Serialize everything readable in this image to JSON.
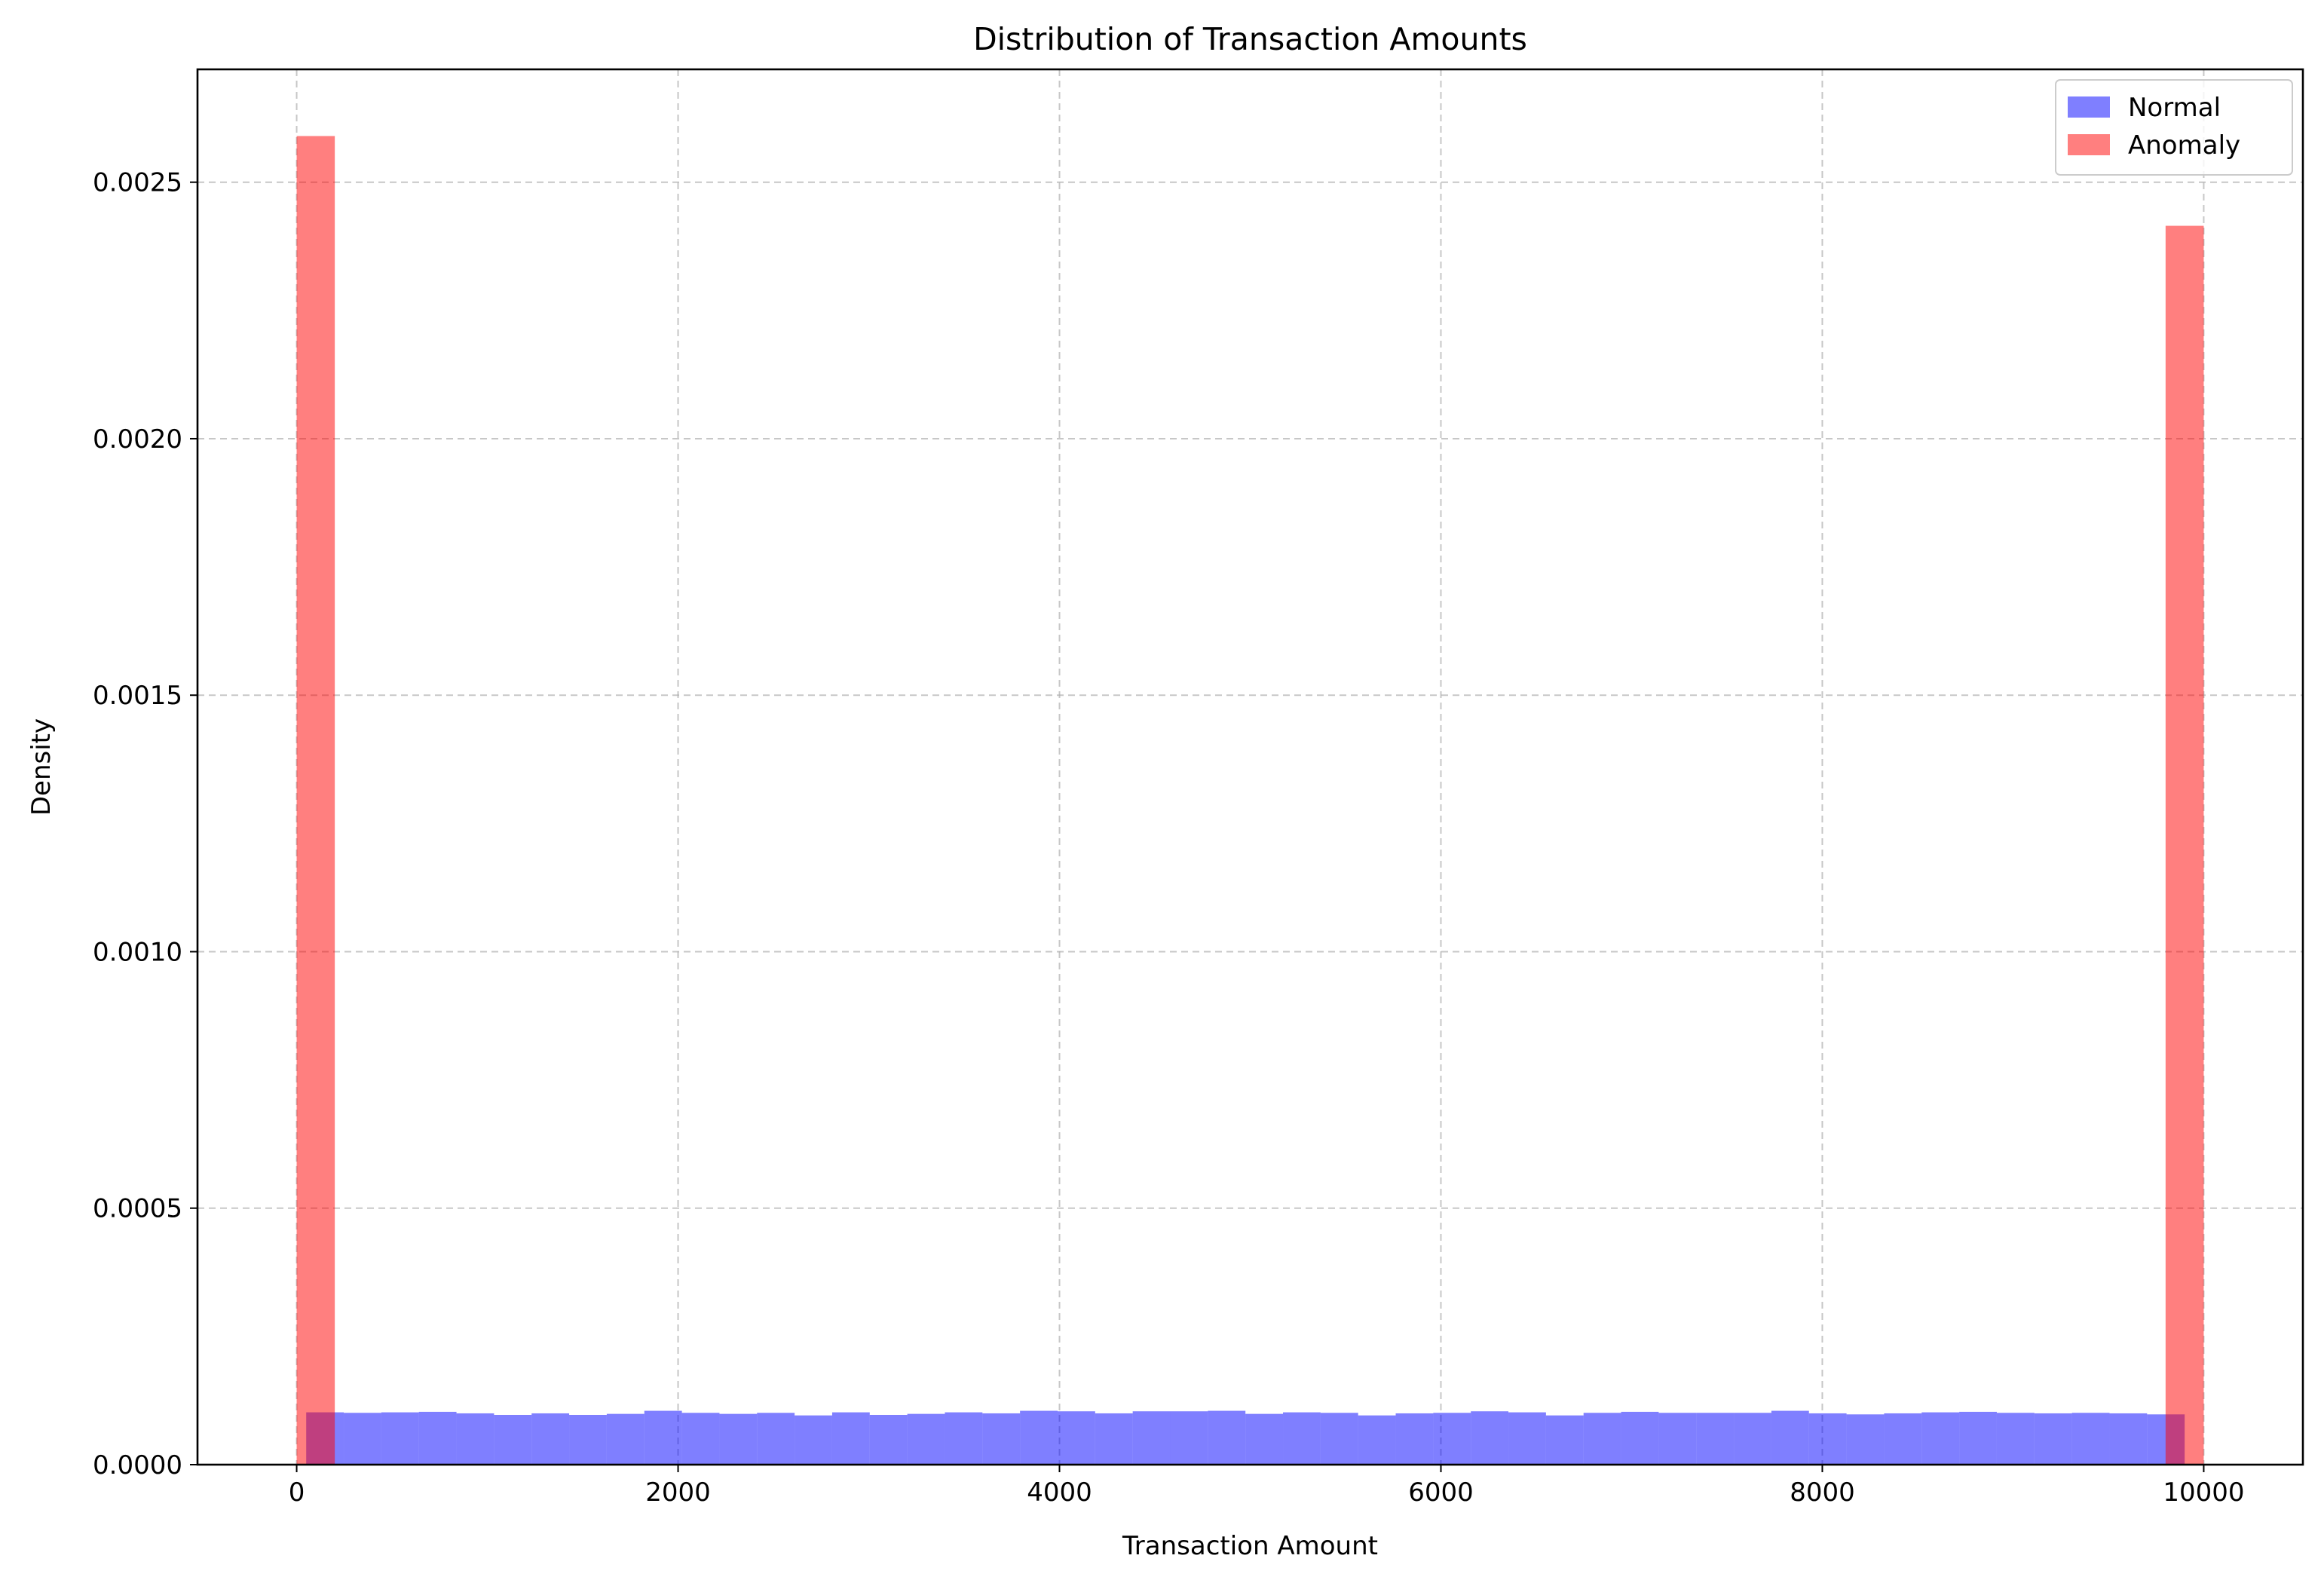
{
  "chart_data": {
    "type": "bar",
    "title": "Distribution of Transaction Amounts",
    "xlabel": "Transaction Amount",
    "ylabel": "Density",
    "xlim": [
      -520,
      10520
    ],
    "ylim": [
      0,
      0.00272
    ],
    "grid": true,
    "legend_position": "top-right",
    "x_ticks": [
      0,
      2000,
      4000,
      6000,
      8000,
      10000
    ],
    "x_tick_labels": [
      "0",
      "2000",
      "4000",
      "6000",
      "8000",
      "10000"
    ],
    "y_ticks": [
      0,
      0.0005,
      0.001,
      0.0015,
      0.002,
      0.0025
    ],
    "y_tick_labels": [
      "0.0000",
      "0.0005",
      "0.0010",
      "0.0015",
      "0.0020",
      "0.0025"
    ],
    "series": [
      {
        "name": "Normal",
        "color": "#0000ff",
        "opacity": 0.5,
        "bin_edges": [
          50,
          247,
          444,
          641,
          838,
          1035,
          1232,
          1429,
          1626,
          1823,
          2020,
          2217,
          2414,
          2611,
          2808,
          3005,
          3202,
          3399,
          3596,
          3793,
          3990,
          4187,
          4384,
          4581,
          4778,
          4975,
          5172,
          5369,
          5566,
          5763,
          5960,
          6157,
          6354,
          6551,
          6748,
          6945,
          7142,
          7339,
          7536,
          7733,
          7930,
          8127,
          8324,
          8521,
          8718,
          8915,
          9112,
          9309,
          9506,
          9703,
          9900
        ],
        "values": [
          0.000102,
          0.000101,
          0.000102,
          0.000103,
          0.0001,
          9.7e-05,
          0.0001,
          9.7e-05,
          9.9e-05,
          0.000105,
          0.000101,
          9.9e-05,
          0.000101,
          9.6e-05,
          0.000102,
          9.7e-05,
          9.9e-05,
          0.000102,
          0.0001,
          0.000105,
          0.000104,
          0.0001,
          0.000104,
          0.000104,
          0.000105,
          9.9e-05,
          0.000102,
          0.000101,
          9.6e-05,
          0.0001,
          0.000101,
          0.000104,
          0.000102,
          9.6e-05,
          0.000101,
          0.000103,
          0.000101,
          0.000101,
          0.000101,
          0.000105,
          0.0001,
          9.8e-05,
          0.0001,
          0.000102,
          0.000103,
          0.000101,
          0.0001,
          0.000101,
          0.0001,
          9.8e-05
        ]
      },
      {
        "name": "Anomaly",
        "color": "#ff0000",
        "opacity": 0.5,
        "bin_edges": [
          0,
          200,
          400,
          600,
          800,
          1000,
          1200,
          1400,
          1600,
          1800,
          2000,
          2200,
          2400,
          2600,
          2800,
          3000,
          3200,
          3400,
          3600,
          3800,
          4000,
          4200,
          4400,
          4600,
          4800,
          5000,
          5200,
          5400,
          5600,
          5800,
          6000,
          6200,
          6400,
          6600,
          6800,
          7000,
          7200,
          7400,
          7600,
          7800,
          8000,
          8200,
          8400,
          8600,
          8800,
          9000,
          9200,
          9400,
          9600,
          9800,
          10000
        ],
        "values": [
          0.00259,
          0,
          0,
          0,
          0,
          0,
          0,
          0,
          0,
          0,
          0,
          0,
          0,
          0,
          0,
          0,
          0,
          0,
          0,
          0,
          0,
          0,
          0,
          0,
          0,
          0,
          0,
          0,
          0,
          0,
          0,
          0,
          0,
          0,
          0,
          0,
          0,
          0,
          0,
          0,
          0,
          0,
          0,
          0,
          0,
          0,
          0,
          0,
          0,
          0.002415
        ]
      }
    ]
  }
}
